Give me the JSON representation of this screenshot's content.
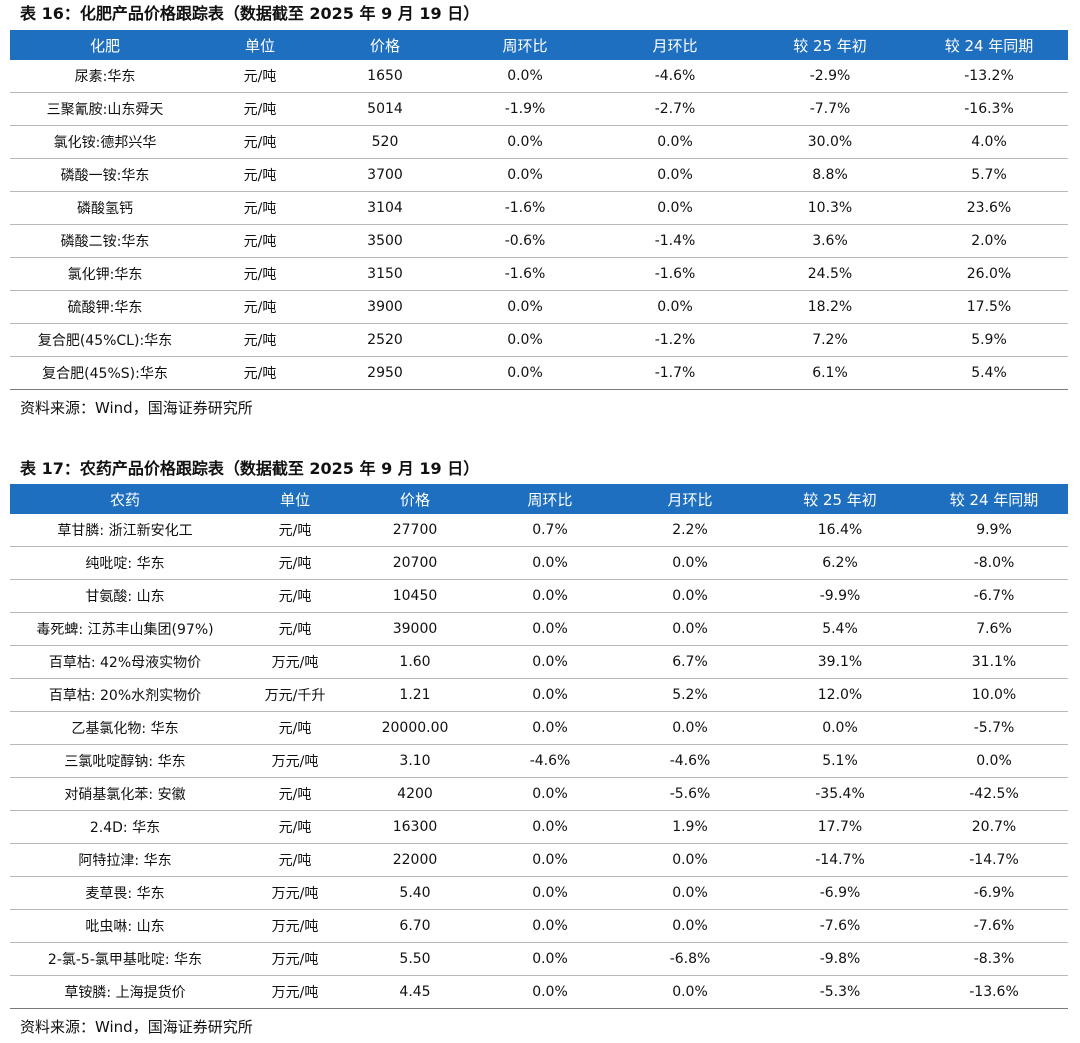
{
  "table16": {
    "caption": "表 16：化肥产品价格跟踪表（数据截至 2025 年 9 月 19 日）",
    "headers": [
      "化肥",
      "单位",
      "价格",
      "周环比",
      "月环比",
      "较 25 年初",
      "较 24 年同期"
    ],
    "rows": [
      [
        "尿素:华东",
        "元/吨",
        "1650",
        "0.0%",
        "-4.6%",
        "-2.9%",
        "-13.2%"
      ],
      [
        "三聚氰胺:山东舜天",
        "元/吨",
        "5014",
        "-1.9%",
        "-2.7%",
        "-7.7%",
        "-16.3%"
      ],
      [
        "氯化铵:德邦兴华",
        "元/吨",
        "520",
        "0.0%",
        "0.0%",
        "30.0%",
        "4.0%"
      ],
      [
        "磷酸一铵:华东",
        "元/吨",
        "3700",
        "0.0%",
        "0.0%",
        "8.8%",
        "5.7%"
      ],
      [
        "磷酸氢钙",
        "元/吨",
        "3104",
        "-1.6%",
        "0.0%",
        "10.3%",
        "23.6%"
      ],
      [
        "磷酸二铵:华东",
        "元/吨",
        "3500",
        "-0.6%",
        "-1.4%",
        "3.6%",
        "2.0%"
      ],
      [
        "氯化钾:华东",
        "元/吨",
        "3150",
        "-1.6%",
        "-1.6%",
        "24.5%",
        "26.0%"
      ],
      [
        "硫酸钾:华东",
        "元/吨",
        "3900",
        "0.0%",
        "0.0%",
        "18.2%",
        "17.5%"
      ],
      [
        "复合肥(45%CL):华东",
        "元/吨",
        "2520",
        "0.0%",
        "-1.2%",
        "7.2%",
        "5.9%"
      ],
      [
        "复合肥(45%S):华东",
        "元/吨",
        "2950",
        "0.0%",
        "-1.7%",
        "6.1%",
        "5.4%"
      ]
    ],
    "source": "资料来源：Wind，国海证券研究所"
  },
  "table17": {
    "caption": "表 17：农药产品价格跟踪表（数据截至 2025 年 9 月 19 日）",
    "headers": [
      "农药",
      "单位",
      "价格",
      "周环比",
      "月环比",
      "较 25 年初",
      "较 24 年同期"
    ],
    "rows": [
      [
        "草甘膦: 浙江新安化工",
        "元/吨",
        "27700",
        "0.7%",
        "2.2%",
        "16.4%",
        "9.9%"
      ],
      [
        "纯吡啶: 华东",
        "元/吨",
        "20700",
        "0.0%",
        "0.0%",
        "6.2%",
        "-8.0%"
      ],
      [
        "甘氨酸: 山东",
        "元/吨",
        "10450",
        "0.0%",
        "0.0%",
        "-9.9%",
        "-6.7%"
      ],
      [
        "毒死蜱: 江苏丰山集团(97%)",
        "元/吨",
        "39000",
        "0.0%",
        "0.0%",
        "5.4%",
        "7.6%"
      ],
      [
        "百草枯: 42%母液实物价",
        "万元/吨",
        "1.60",
        "0.0%",
        "6.7%",
        "39.1%",
        "31.1%"
      ],
      [
        "百草枯: 20%水剂实物价",
        "万元/千升",
        "1.21",
        "0.0%",
        "5.2%",
        "12.0%",
        "10.0%"
      ],
      [
        "乙基氯化物: 华东",
        "元/吨",
        "20000.00",
        "0.0%",
        "0.0%",
        "0.0%",
        "-5.7%"
      ],
      [
        "三氯吡啶醇钠: 华东",
        "万元/吨",
        "3.10",
        "-4.6%",
        "-4.6%",
        "5.1%",
        "0.0%"
      ],
      [
        "对硝基氯化苯: 安徽",
        "元/吨",
        "4200",
        "0.0%",
        "-5.6%",
        "-35.4%",
        "-42.5%"
      ],
      [
        "2.4D: 华东",
        "元/吨",
        "16300",
        "0.0%",
        "1.9%",
        "17.7%",
        "20.7%"
      ],
      [
        "阿特拉津: 华东",
        "元/吨",
        "22000",
        "0.0%",
        "0.0%",
        "-14.7%",
        "-14.7%"
      ],
      [
        "麦草畏: 华东",
        "万元/吨",
        "5.40",
        "0.0%",
        "0.0%",
        "-6.9%",
        "-6.9%"
      ],
      [
        "吡虫啉: 山东",
        "万元/吨",
        "6.70",
        "0.0%",
        "0.0%",
        "-7.6%",
        "-7.6%"
      ],
      [
        "2-氯-5-氯甲基吡啶: 华东",
        "万元/吨",
        "5.50",
        "0.0%",
        "-6.8%",
        "-9.8%",
        "-8.3%"
      ],
      [
        "草铵膦: 上海提货价",
        "万元/吨",
        "4.45",
        "0.0%",
        "0.0%",
        "-5.3%",
        "-13.6%"
      ]
    ],
    "source": "资料来源：Wind，国海证券研究所"
  },
  "colors": {
    "header_bg": "#1f6fc0",
    "header_text": "#ffffff",
    "row_rule": "#b8b8b8"
  }
}
